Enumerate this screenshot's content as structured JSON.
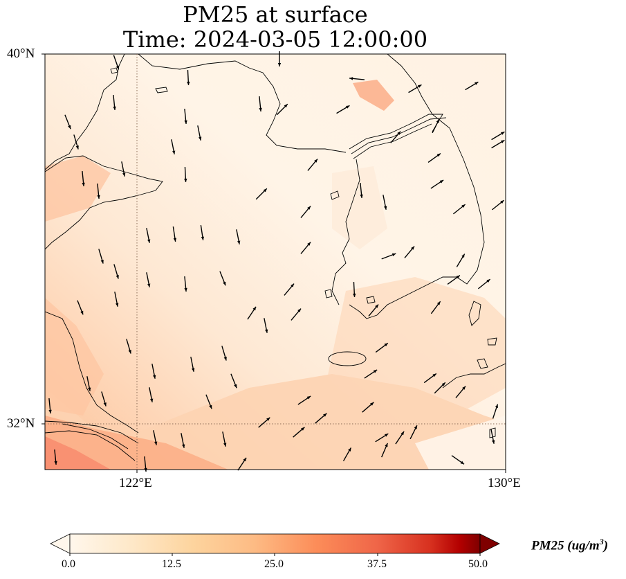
{
  "title": {
    "line1": "PM25 at surface",
    "line2": "Time: 2024-03-05 12:00:00"
  },
  "map": {
    "lon_range": [
      118,
      130
    ],
    "lat_range": [
      31.2,
      40
    ],
    "lat_labels": [
      "40°N",
      "32°N"
    ],
    "lon_labels": [
      "122°E",
      "130°E"
    ],
    "gridlines": {
      "lon": 122,
      "lat": 32,
      "style": "dotted"
    },
    "features": [
      "coastline",
      "wind-vectors",
      "pm25-field"
    ]
  },
  "colorbar": {
    "cmap": "OrRd",
    "min": 0.0,
    "max": 50.0,
    "extend": "both",
    "ticks": [
      "0.0",
      "12.5",
      "25.0",
      "37.5",
      "50.0"
    ],
    "label_main": "PM25 (ug/m",
    "label_sup": "3",
    "label_close": ")"
  },
  "colors": {
    "low": "#fff7ec",
    "mid": "#fdbb84",
    "high": "#7f0000"
  }
}
